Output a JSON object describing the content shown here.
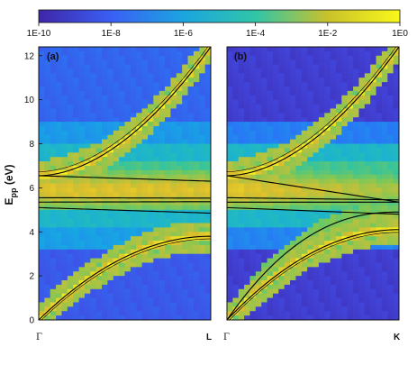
{
  "chart_data": {
    "type": "heatmap",
    "colormap": "viridis",
    "colorbar": {
      "scale": "log",
      "range": [
        1e-10,
        1
      ],
      "ticks": [
        "1E-10",
        "1E-8",
        "1E-6",
        "1E-4",
        "1E-2",
        "1E0"
      ]
    },
    "y_axis": {
      "label_main": "E",
      "label_sub": "pp",
      "label_unit": " (eV)",
      "range": [
        0,
        12.4
      ],
      "ticks": [
        0,
        2,
        4,
        6,
        8,
        10,
        12
      ]
    },
    "panels": [
      {
        "tag": "(a)",
        "x_start_label": "Γ",
        "x_end_label": "L",
        "bands_eV": {
          "upper": [
            6.55,
            12.4
          ],
          "flat": [
            6.55,
            5.55,
            5.35,
            5.1
          ],
          "lower": [
            0.0,
            3.8
          ]
        }
      },
      {
        "tag": "(b)",
        "x_start_label": "Γ",
        "x_end_label": "K",
        "bands_eV": {
          "upper": [
            6.55,
            12.4
          ],
          "flat": [
            6.55,
            5.55,
            5.35,
            5.1
          ],
          "lower": [
            0.0,
            4.1
          ]
        }
      }
    ],
    "grid": false,
    "legend": "none"
  }
}
